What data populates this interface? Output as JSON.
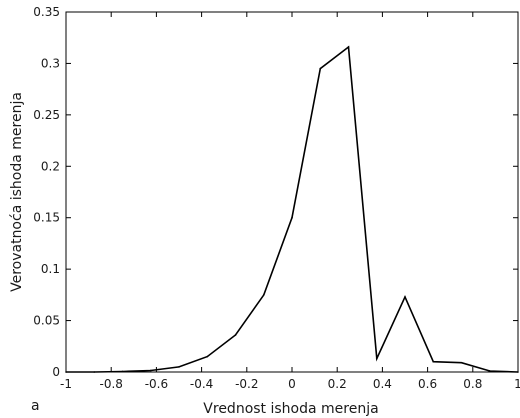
{
  "chart_data": {
    "type": "line",
    "panel_label": "a",
    "xlabel": "Vrednost ishoda merenja",
    "ylabel": "Verovatnoća ishoda merenja",
    "xlim": [
      -1,
      1
    ],
    "ylim": [
      0,
      0.35
    ],
    "xticks": [
      -1,
      -0.8,
      -0.6,
      -0.4,
      -0.2,
      0,
      0.2,
      0.4,
      0.6,
      0.8,
      1
    ],
    "xtick_labels": [
      "-1",
      "-0.8",
      "-0.6",
      "-0.4",
      "-0.2",
      "0",
      "0.2",
      "0.4",
      "0.6",
      "0.8",
      "1"
    ],
    "yticks": [
      0,
      0.05,
      0.1,
      0.15,
      0.2,
      0.25,
      0.3,
      0.35
    ],
    "ytick_labels": [
      "0",
      "0.05",
      "0.1",
      "0.15",
      "0.2",
      "0.25",
      "0.3",
      "0.35"
    ],
    "grid": false,
    "series": [
      {
        "x": [
          -1,
          -0.875,
          -0.75,
          -0.625,
          -0.5,
          -0.375,
          -0.25,
          -0.125,
          0,
          0.125,
          0.25,
          0.375,
          0.5,
          0.625,
          0.75,
          0.875,
          1
        ],
        "y": [
          0,
          0,
          0.0005,
          0.0015,
          0.005,
          0.015,
          0.036,
          0.075,
          0.15,
          0.295,
          0.316,
          0.013,
          0.073,
          0.01,
          0.009,
          0.001,
          0
        ],
        "color": "#000000"
      }
    ]
  }
}
